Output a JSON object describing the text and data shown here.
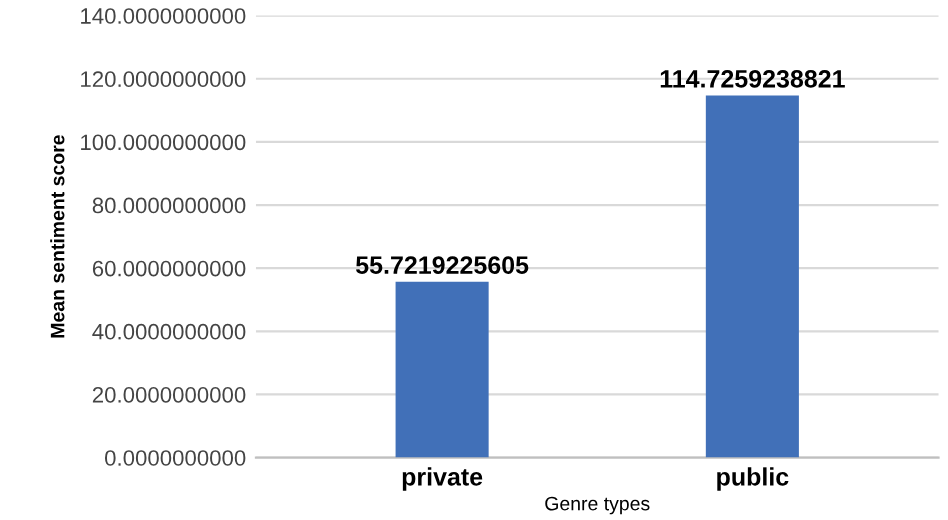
{
  "chart_data": {
    "type": "bar",
    "xlabel": "Genre types",
    "ylabel": "Mean sentiment score",
    "categories": [
      "private",
      "public"
    ],
    "values": [
      55.7219225605,
      114.7259238821
    ],
    "color": "#4170b8",
    "data_labels": true,
    "ylim": [
      0,
      140
    ],
    "yticks": [
      {
        "value": 0,
        "label": "0.0000000000"
      },
      {
        "value": 20,
        "label": "20.0000000000"
      },
      {
        "value": 40,
        "label": "40.0000000000"
      },
      {
        "value": 60,
        "label": "60.0000000000"
      },
      {
        "value": 80,
        "label": "80.0000000000"
      },
      {
        "value": 100,
        "label": "100.0000000000"
      },
      {
        "value": 120,
        "label": "120.0000000000"
      },
      {
        "value": 140,
        "label": "140.0000000000"
      }
    ],
    "grid": "y"
  }
}
